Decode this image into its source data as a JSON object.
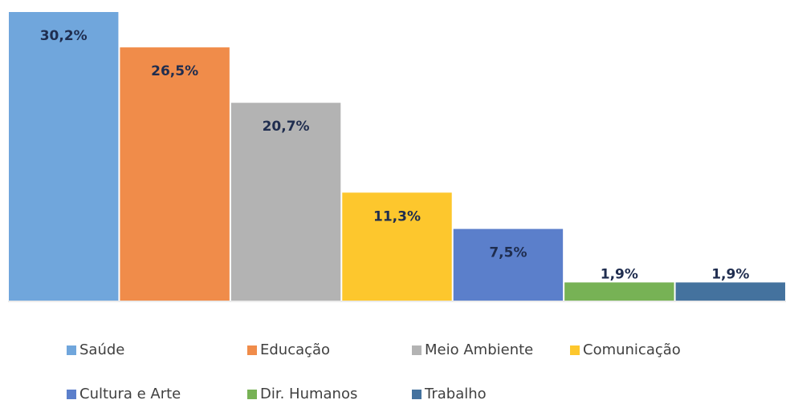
{
  "chart_data": {
    "type": "bar",
    "categories": [
      "Saúde",
      "Educação",
      "Meio Ambiente",
      "Comunicação",
      "Cultura e Arte",
      "Dir. Humanos",
      "Trabalho"
    ],
    "values": [
      30.2,
      26.5,
      20.7,
      11.3,
      7.5,
      1.9,
      1.9
    ],
    "value_labels": [
      "30,2%",
      "26,5%",
      "20,7%",
      "11,3%",
      "7,5%",
      "1,9%",
      "1,9%"
    ],
    "colors": [
      "#70a6dc",
      "#f08c4a",
      "#b3b3b3",
      "#fdc72d",
      "#5b7fcb",
      "#77b255",
      "#44729e"
    ]
  }
}
